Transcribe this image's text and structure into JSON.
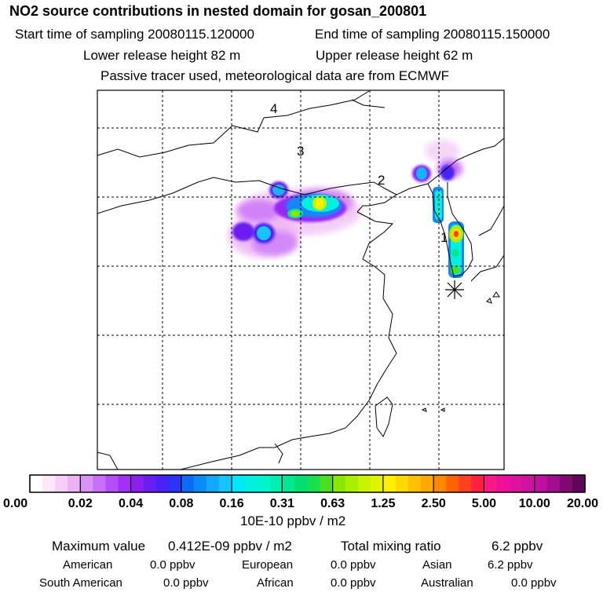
{
  "header": {
    "title": "NO2 source contributions in nested domain for gosan_200801",
    "start_sampling": "Start time of sampling 20080115.120000",
    "end_sampling": "End time of sampling 20080115.150000",
    "lower_release": "Lower release height   82 m",
    "upper_release": "Upper release height   62 m",
    "tracer_note": "Passive tracer used, meteorological data are from ECMWF"
  },
  "map": {
    "region_labels": [
      "4",
      "3",
      "2",
      "1"
    ],
    "receptor_marker": "asterisk",
    "colors": {
      "frame": "#000000",
      "grid": "#000000",
      "coast": "#000000"
    }
  },
  "colorbar": {
    "tick_labels": [
      "0.00",
      "0.02",
      "0.04",
      "0.08",
      "0.16",
      "0.31",
      "0.63",
      "1.25",
      "2.50",
      "5.00",
      "10.00",
      "20.00"
    ],
    "colors": [
      "#ffffff",
      "#fbe9fb",
      "#f5cff5",
      "#ebb1f0",
      "#d894f5",
      "#c870f8",
      "#b44ef8",
      "#a32ff8",
      "#8a20f0",
      "#6a1ef2",
      "#4a24f6",
      "#2a34fb",
      "#0a6cf6",
      "#0a8cf8",
      "#14a8fa",
      "#14c4fa",
      "#00e8f8",
      "#00f0e0",
      "#00f4cc",
      "#00eeb4",
      "#00e890",
      "#00e070",
      "#18e050",
      "#48e020",
      "#88e800",
      "#a8f000",
      "#c8f400",
      "#e0f400",
      "#fff000",
      "#ffd800",
      "#ffc000",
      "#ffa800",
      "#ff8800",
      "#ff6400",
      "#ff4020",
      "#ff2040",
      "#ff1888",
      "#f01098",
      "#e010a0",
      "#d010a0",
      "#c010a0",
      "#a00e8c",
      "#800a70",
      "#600658"
    ],
    "units": "10E-10 ppbv / m2"
  },
  "summary": {
    "max_label": "Maximum value",
    "max_value": "0.412E-09 ppbv / m2",
    "total_label": "Total mixing ratio",
    "total_value": "6.2 ppbv",
    "regions": [
      {
        "name": "American",
        "value": "0.0 ppbv"
      },
      {
        "name": "European",
        "value": "0.0 ppbv"
      },
      {
        "name": "Asian",
        "value": "6.2 ppbv"
      },
      {
        "name": "South American",
        "value": "0.0 ppbv"
      },
      {
        "name": "African",
        "value": "0.0 ppbv"
      },
      {
        "name": "Australian",
        "value": "0.0 ppbv"
      }
    ]
  }
}
